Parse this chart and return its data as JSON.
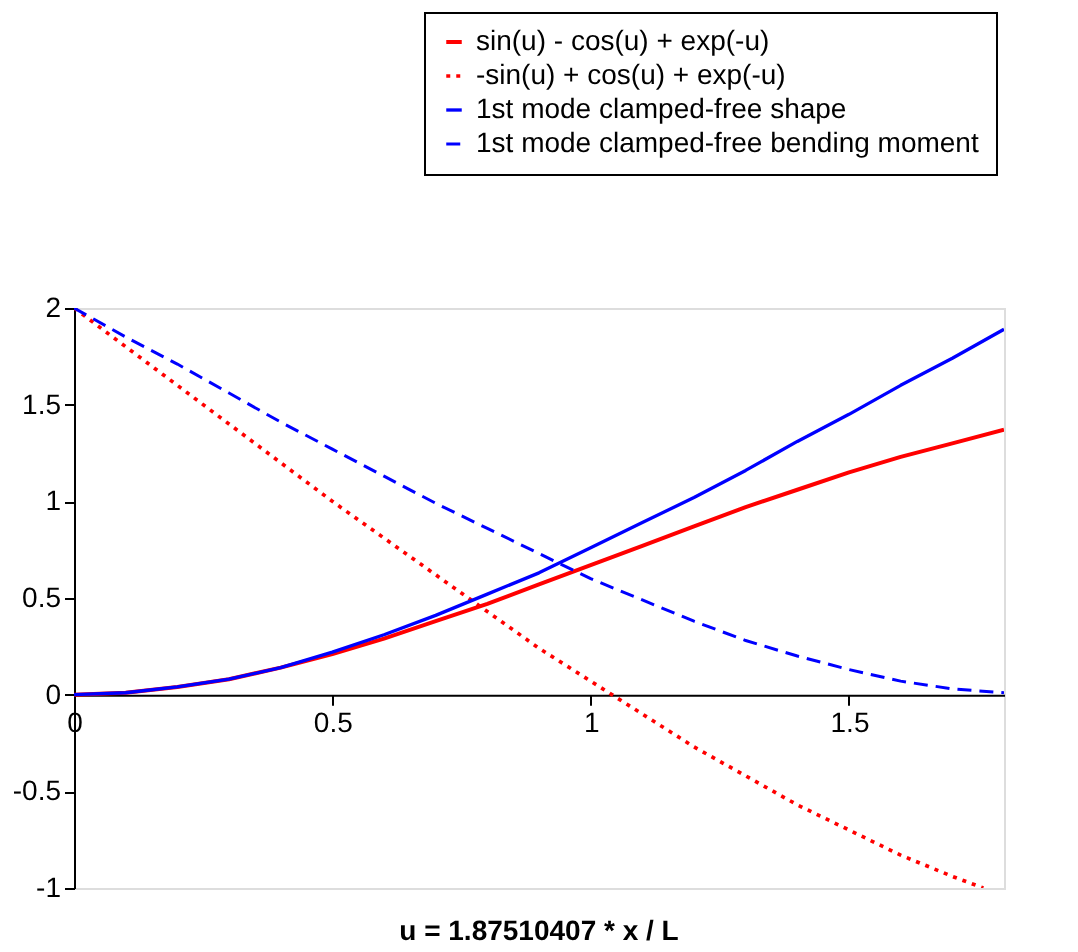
{
  "chart_data": {
    "type": "line",
    "xlabel": "u = 1.87510407 * x / L",
    "series": [
      {
        "name": "sin(u) - cos(u) + exp(-u)",
        "color": "#ff0000",
        "line_style": "solid",
        "x": [
          0,
          0.1,
          0.2,
          0.3,
          0.4,
          0.5,
          0.6,
          0.7,
          0.8,
          0.9,
          1.0,
          1.1,
          1.2,
          1.3,
          1.4,
          1.5,
          1.6,
          1.7,
          1.8
        ],
        "values": [
          0,
          0.01,
          0.04,
          0.08,
          0.14,
          0.21,
          0.29,
          0.38,
          0.47,
          0.57,
          0.67,
          0.77,
          0.87,
          0.97,
          1.06,
          1.15,
          1.23,
          1.3,
          1.37
        ]
      },
      {
        "name": "-sin(u) + cos(u) + exp(-u)",
        "color": "#ff0000",
        "line_style": "dotted",
        "x": [
          0,
          0.1,
          0.2,
          0.3,
          0.4,
          0.5,
          0.6,
          0.7,
          0.8,
          0.9,
          1.0,
          1.1,
          1.2,
          1.3,
          1.4,
          1.5,
          1.6,
          1.7,
          1.76
        ],
        "values": [
          2,
          1.8,
          1.6,
          1.4,
          1.2,
          1.0,
          0.81,
          0.62,
          0.43,
          0.24,
          0.07,
          -0.1,
          -0.27,
          -0.42,
          -0.57,
          -0.7,
          -0.83,
          -0.94,
          -1.0
        ]
      },
      {
        "name": "1st mode clamped-free shape",
        "color": "#0000ff",
        "line_style": "solid",
        "x": [
          0,
          0.1,
          0.2,
          0.3,
          0.4,
          0.5,
          0.6,
          0.7,
          0.8,
          0.9,
          1.0,
          1.1,
          1.2,
          1.3,
          1.4,
          1.5,
          1.6,
          1.7,
          1.8
        ],
        "values": [
          0,
          0.01,
          0.04,
          0.08,
          0.14,
          0.22,
          0.31,
          0.41,
          0.52,
          0.63,
          0.76,
          0.89,
          1.02,
          1.16,
          1.31,
          1.45,
          1.6,
          1.74,
          1.89
        ]
      },
      {
        "name": "1st mode clamped-free bending moment",
        "color": "#0000ff",
        "line_style": "dashed",
        "x": [
          0,
          0.1,
          0.2,
          0.3,
          0.4,
          0.5,
          0.6,
          0.7,
          0.8,
          0.9,
          1.0,
          1.1,
          1.2,
          1.3,
          1.4,
          1.5,
          1.6,
          1.7,
          1.8
        ],
        "values": [
          2,
          1.85,
          1.71,
          1.56,
          1.41,
          1.27,
          1.13,
          0.99,
          0.86,
          0.73,
          0.6,
          0.49,
          0.38,
          0.28,
          0.2,
          0.13,
          0.07,
          0.03,
          0.01
        ]
      }
    ],
    "xlim": [
      0,
      1.8
    ],
    "xticks": [
      0,
      0.5,
      1,
      1.5
    ],
    "ylim": [
      -1,
      2
    ],
    "yticks": [
      -1,
      -0.5,
      0,
      0.5,
      1,
      1.5,
      2
    ],
    "grid": false,
    "legend": "top right"
  }
}
